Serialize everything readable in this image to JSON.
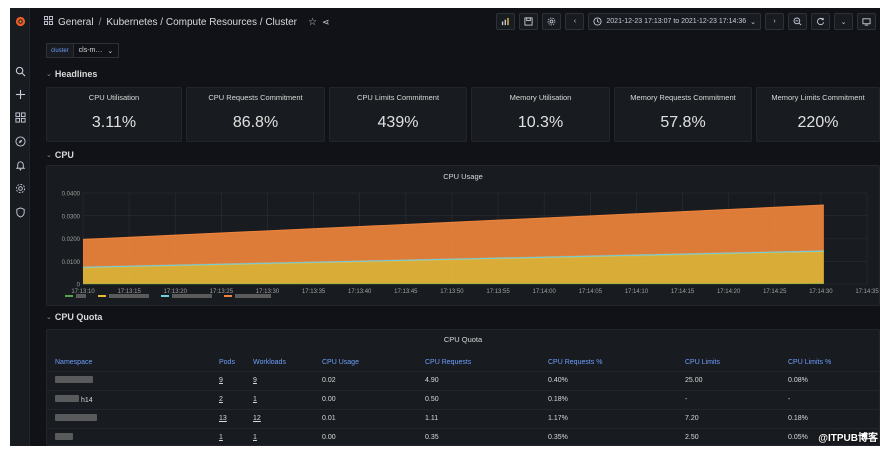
{
  "breadcrumb": {
    "folder": "General",
    "title": "Kubernetes / Compute Resources / Cluster",
    "separator": "/"
  },
  "time_range": "2021-12-23 17:13:07 to 2021-12-23 17:14:36",
  "variable": {
    "label": "cluster",
    "value": "cls-m…"
  },
  "rows": {
    "headlines": "Headlines",
    "cpu": "CPU",
    "cpu_quota": "CPU Quota"
  },
  "stats": [
    {
      "title": "CPU Utilisation",
      "value": "3.11%"
    },
    {
      "title": "CPU Requests Commitment",
      "value": "86.8%"
    },
    {
      "title": "CPU Limits Commitment",
      "value": "439%"
    },
    {
      "title": "Memory Utilisation",
      "value": "10.3%"
    },
    {
      "title": "Memory Requests Commitment",
      "value": "57.8%"
    },
    {
      "title": "Memory Limits Commitment",
      "value": "220%"
    }
  ],
  "chart_data": {
    "type": "area",
    "title": "CPU Usage",
    "x": [
      "17:13:10",
      "17:13:15",
      "17:13:20",
      "17:13:25",
      "17:13:30",
      "17:13:35",
      "17:13:40",
      "17:13:45",
      "17:13:50",
      "17:13:55",
      "17:14:00",
      "17:14:05",
      "17:14:10",
      "17:14:15",
      "17:14:20",
      "17:14:25",
      "17:14:30",
      "17:14:35"
    ],
    "y_ticks": [
      "0",
      "0.0100",
      "0.0200",
      "0.0300",
      "0.0400"
    ],
    "ylim": [
      0,
      0.04
    ],
    "stacked": true,
    "series": [
      {
        "color": "#56a64b",
        "start": 0.0001,
        "end": 0.0002
      },
      {
        "color": "#eab839",
        "start": 0.007,
        "end": 0.014
      },
      {
        "color": "#6ed0e0",
        "start": 0.0005,
        "end": 0.0005
      },
      {
        "color": "#ef843c",
        "start": 0.012,
        "end": 0.02
      }
    ],
    "data_end_x_fraction": 0.945,
    "grid": true
  },
  "table": {
    "title": "CPU Quota",
    "headers": [
      "Namespace",
      "Pods",
      "Workloads",
      "CPU Usage",
      "CPU Requests",
      "CPU Requests %",
      "CPU Limits",
      "CPU Limits %"
    ],
    "rows": [
      {
        "namespace": "",
        "pods": "9",
        "workloads": "9",
        "usage": "0.02",
        "requests": "4.90",
        "requests_pct": "0.40%",
        "limits": "25.00",
        "limits_pct": "0.08%"
      },
      {
        "namespace": "h14",
        "pods": "2",
        "workloads": "1",
        "usage": "0.00",
        "requests": "0.50",
        "requests_pct": "0.18%",
        "limits": "-",
        "limits_pct": "-"
      },
      {
        "namespace": "",
        "pods": "13",
        "workloads": "12",
        "usage": "0.01",
        "requests": "1.11",
        "requests_pct": "1.17%",
        "limits": "7.20",
        "limits_pct": "0.18%"
      },
      {
        "namespace": "",
        "pods": "1",
        "workloads": "1",
        "usage": "0.00",
        "requests": "0.35",
        "requests_pct": "0.35%",
        "limits": "2.50",
        "limits_pct": "0.05%"
      }
    ]
  },
  "watermark": "@ITPUB博客",
  "colors": {
    "bg": "#111217",
    "panel": "#181b1f",
    "accent": "#6e9fff",
    "logo": "#f05a28"
  }
}
